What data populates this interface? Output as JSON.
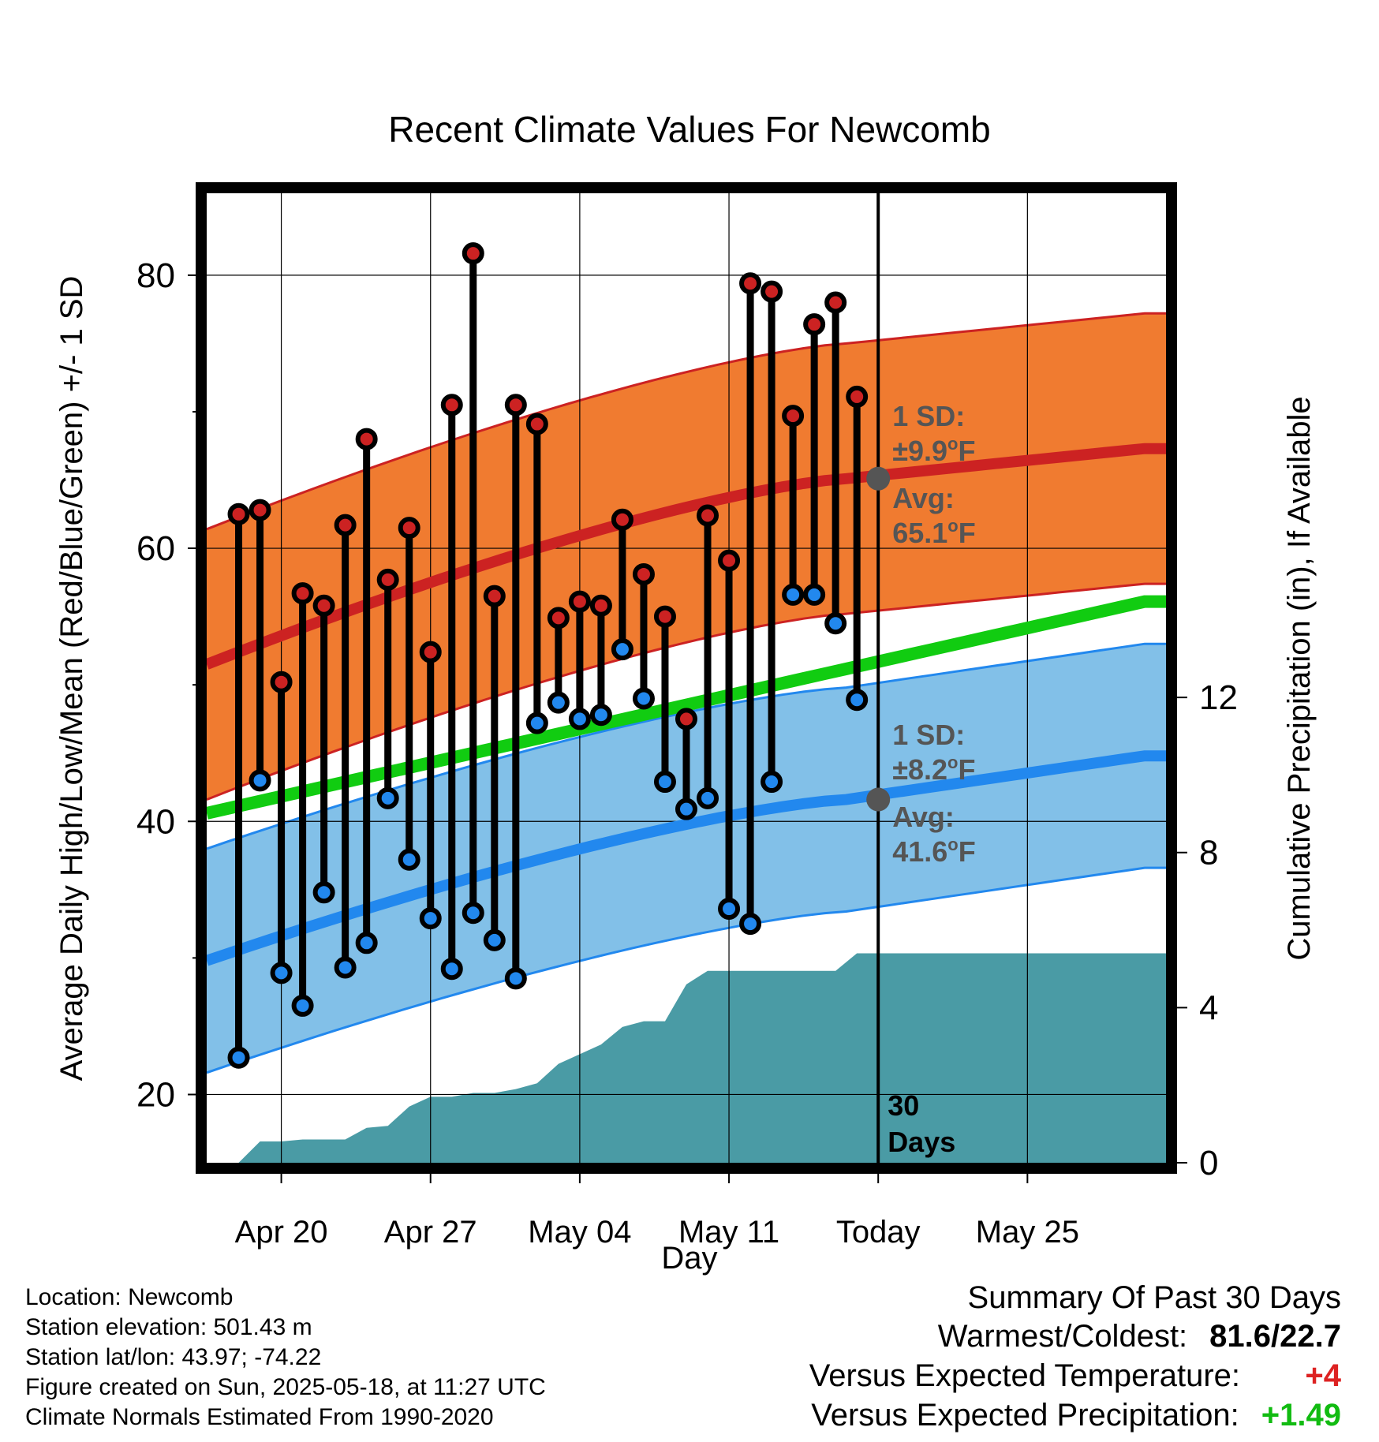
{
  "chart_data": {
    "type": "line",
    "title": "Recent Climate Values For Newcomb",
    "xlabel": "Day",
    "ylabel": "Average Daily High/Low/Mean (Red/Blue/Green) +/- 1 SD",
    "y2label": "Cumulative Precipitation (in), If Available",
    "x_ticks": [
      "Apr 20",
      "Apr 27",
      "May 04",
      "May 11",
      "Today",
      "May 25"
    ],
    "y_ticks": [
      20,
      40,
      60,
      80
    ],
    "y2_ticks": [
      0,
      4,
      8,
      12
    ],
    "ylim": [
      15,
      86
    ],
    "y2lim": [
      0,
      25
    ],
    "daily_x": [
      "Apr 18",
      "Apr 19",
      "Apr 20",
      "Apr 21",
      "Apr 22",
      "Apr 23",
      "Apr 24",
      "Apr 25",
      "Apr 26",
      "Apr 27",
      "Apr 28",
      "Apr 29",
      "Apr 30",
      "May 01",
      "May 02",
      "May 03",
      "May 04",
      "May 05",
      "May 06",
      "May 07",
      "May 08",
      "May 09",
      "May 10",
      "May 11",
      "May 12",
      "May 13",
      "May 14",
      "May 15",
      "May 16",
      "May 17"
    ],
    "series": [
      {
        "name": "High",
        "color": "#cc2222",
        "values": [
          62.5,
          62.8,
          50.2,
          56.7,
          55.8,
          61.7,
          68.0,
          57.7,
          61.5,
          52.4,
          70.5,
          81.6,
          56.5,
          70.5,
          69.1,
          54.9,
          56.1,
          55.8,
          62.1,
          58.1,
          55.0,
          47.5,
          62.4,
          59.1,
          79.4,
          78.8,
          69.7,
          76.4,
          78.0,
          71.1
        ]
      },
      {
        "name": "Low",
        "color": "#2288ee",
        "values": [
          22.7,
          43.0,
          28.9,
          26.5,
          34.8,
          29.3,
          31.1,
          41.7,
          37.2,
          32.9,
          29.2,
          33.3,
          31.3,
          28.5,
          47.2,
          48.7,
          47.5,
          47.8,
          52.6,
          49.0,
          42.9,
          40.9,
          41.7,
          33.6,
          32.5,
          42.9,
          56.6,
          56.6,
          54.5,
          48.9
        ]
      },
      {
        "name": "Cumulative Precipitation (in)",
        "color": "#4a9ba5",
        "values": [
          0.0,
          0.55,
          0.55,
          0.6,
          0.6,
          0.6,
          0.9,
          0.95,
          1.45,
          1.7,
          1.7,
          1.8,
          1.8,
          1.9,
          2.05,
          2.55,
          2.8,
          3.05,
          3.5,
          3.65,
          3.65,
          4.6,
          4.95,
          4.95,
          4.95,
          4.95,
          4.95,
          4.95,
          4.95,
          5.4
        ]
      }
    ],
    "normals": {
      "high_avg": {
        "start": 51.5,
        "today": 65.1,
        "end": 67.3,
        "color": "#cc2222",
        "band_color": "#f07b30"
      },
      "low_avg": {
        "start": 29.8,
        "today": 41.6,
        "end": 44.8,
        "color": "#2288ee",
        "band_color": "#82c0e8"
      },
      "mean_avg": {
        "start": 40.6,
        "end": 56.1,
        "color": "#11cc11"
      },
      "high_sd": 9.9,
      "low_sd": 8.2
    },
    "annotations": {
      "high_sd_label": "1 SD:",
      "high_sd_value": "±9.9",
      "high_avg_label": "Avg:",
      "high_avg_value": "65.1",
      "low_sd_label": "1 SD:",
      "low_sd_value": "±8.2",
      "low_avg_label": "Avg:",
      "low_avg_value": "41.6",
      "unit_super": "o",
      "unit_letter": "F",
      "days_number": "30",
      "days_word": "Days"
    },
    "grid": true
  },
  "station": {
    "location": "Location: Newcomb",
    "elevation": "Station elevation: 501.43 m",
    "latlon": "Station lat/lon: 43.97; -74.22",
    "created": "Figure created on Sun, 2025-05-18, at 11:27 UTC",
    "normals": "Climate Normals Estimated From 1990-2020"
  },
  "summary": {
    "title": "Summary Of Past 30 Days",
    "warm_cold_label": "Warmest/Coldest:",
    "warm_cold_value": "81.6/22.7",
    "temp_label": "Versus Expected Temperature:",
    "temp_value": "+4",
    "temp_color": "#dd2222",
    "precip_label": "Versus Expected Precipitation:",
    "precip_value": "+1.49",
    "precip_color": "#11bb11"
  }
}
